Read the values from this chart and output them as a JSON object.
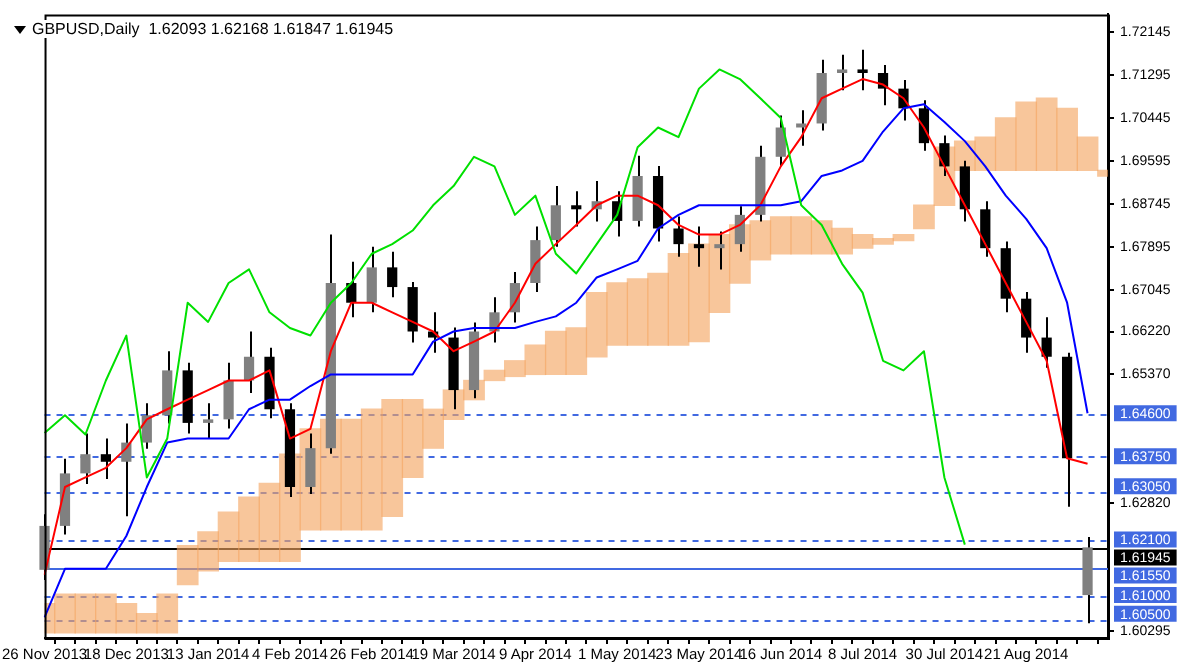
{
  "chart_data": {
    "type": "candlestick",
    "title": "GBPUSD,Daily  1.62093 1.62168 1.61847 1.61945",
    "categories": [
      "26 Nov 2013",
      null,
      null,
      null,
      "18 Dec 2013",
      null,
      null,
      null,
      "13 Jan 2014",
      null,
      null,
      null,
      "4 Feb 2014",
      null,
      null,
      null,
      "26 Feb 2014",
      null,
      null,
      null,
      "19 Mar 2014",
      null,
      null,
      null,
      "9 Apr 2014",
      null,
      null,
      null,
      "1 May 2014",
      null,
      null,
      null,
      "23 May 2014",
      null,
      null,
      null,
      "16 Jun 2014",
      null,
      null,
      null,
      "8 Jul 2014",
      null,
      null,
      null,
      "30 Jul 2014",
      null,
      null,
      null,
      "21 Aug 2014",
      null,
      null,
      null,
      null
    ],
    "ohlc": [
      [
        1.615,
        1.626,
        1.613,
        1.6237
      ],
      [
        1.6237,
        1.637,
        1.622,
        1.6341
      ],
      [
        1.6341,
        1.642,
        1.632,
        1.6379
      ],
      [
        1.6379,
        1.641,
        1.633,
        1.6364
      ],
      [
        1.6364,
        1.644,
        1.6256,
        1.6402
      ],
      [
        1.6402,
        1.648,
        1.639,
        1.6456
      ],
      [
        1.6456,
        1.6583,
        1.644,
        1.6545
      ],
      [
        1.6545,
        1.656,
        1.642,
        1.6441
      ],
      [
        1.6441,
        1.648,
        1.641,
        1.6448
      ],
      [
        1.6448,
        1.656,
        1.643,
        1.6525
      ],
      [
        1.6525,
        1.6622,
        1.65,
        1.6572
      ],
      [
        1.6572,
        1.659,
        1.645,
        1.6468
      ],
      [
        1.6468,
        1.648,
        1.6294,
        1.6314
      ],
      [
        1.6314,
        1.642,
        1.63,
        1.6391
      ],
      [
        1.6391,
        1.6814,
        1.638,
        1.6718
      ],
      [
        1.6718,
        1.676,
        1.665,
        1.6679
      ],
      [
        1.6679,
        1.679,
        1.666,
        1.6749
      ],
      [
        1.6749,
        1.678,
        1.669,
        1.671
      ],
      [
        1.671,
        1.672,
        1.66,
        1.6622
      ],
      [
        1.6622,
        1.666,
        1.658,
        1.661
      ],
      [
        1.661,
        1.663,
        1.6468,
        1.6506
      ],
      [
        1.6506,
        1.664,
        1.649,
        1.6622
      ],
      [
        1.6622,
        1.669,
        1.66,
        1.666
      ],
      [
        1.666,
        1.674,
        1.664,
        1.6718
      ],
      [
        1.6718,
        1.683,
        1.67,
        1.6803
      ],
      [
        1.6803,
        1.691,
        1.679,
        1.6872
      ],
      [
        1.6872,
        1.69,
        1.683,
        1.6864
      ],
      [
        1.6864,
        1.692,
        1.684,
        1.688
      ],
      [
        1.688,
        1.69,
        1.681,
        1.6841
      ],
      [
        1.6841,
        1.697,
        1.683,
        1.693
      ],
      [
        1.693,
        1.695,
        1.68,
        1.6826
      ],
      [
        1.6826,
        1.685,
        1.677,
        1.6795
      ],
      [
        1.6795,
        1.683,
        1.675,
        1.6787
      ],
      [
        1.6787,
        1.682,
        1.6745,
        1.6795
      ],
      [
        1.6795,
        1.687,
        1.678,
        1.6853
      ],
      [
        1.6853,
        1.699,
        1.684,
        1.6968
      ],
      [
        1.6968,
        1.705,
        1.695,
        1.7026
      ],
      [
        1.7026,
        1.706,
        1.699,
        1.7034
      ],
      [
        1.7034,
        1.716,
        1.702,
        1.7134
      ],
      [
        1.7134,
        1.717,
        1.71,
        1.7141
      ],
      [
        1.7141,
        1.718,
        1.71,
        1.7134
      ],
      [
        1.7134,
        1.715,
        1.707,
        1.7103
      ],
      [
        1.7103,
        1.712,
        1.704,
        1.7064
      ],
      [
        1.7064,
        1.708,
        1.698,
        1.6995
      ],
      [
        1.6995,
        1.701,
        1.693,
        1.6949
      ],
      [
        1.6949,
        1.696,
        1.684,
        1.6864
      ],
      [
        1.6864,
        1.688,
        1.677,
        1.6787
      ],
      [
        1.6787,
        1.68,
        1.666,
        1.6687
      ],
      [
        1.6687,
        1.67,
        1.658,
        1.661
      ],
      [
        1.661,
        1.665,
        1.655,
        1.6572
      ],
      [
        1.6572,
        1.658,
        1.6275,
        1.6371
      ],
      [
        1.61,
        1.6215,
        1.6044,
        1.61945
      ],
      null
    ],
    "colors": [
      "#808080",
      "#808080",
      "#808080",
      "#000000",
      "#808080",
      "#808080",
      "#808080",
      "#000000",
      "#808080",
      "#808080",
      "#808080",
      "#000000",
      "#000000",
      "#808080",
      "#808080",
      "#000000",
      "#808080",
      "#000000",
      "#000000",
      "#000000",
      "#000000",
      "#808080",
      "#808080",
      "#808080",
      "#808080",
      "#808080",
      "#000000",
      "#808080",
      "#000000",
      "#808080",
      "#000000",
      "#000000",
      "#000000",
      "#808080",
      "#808080",
      "#808080",
      "#808080",
      "#808080",
      "#808080",
      "#808080",
      "#000000",
      "#000000",
      "#000000",
      "#000000",
      "#000000",
      "#000000",
      "#000000",
      "#000000",
      "#000000",
      "#000000",
      "#000000",
      "#808080",
      null
    ],
    "series": [
      {
        "type": "bar",
        "color": "#f4a460",
        "base": [
          1.6025,
          1.6025,
          1.6025,
          1.6025,
          1.6025,
          1.6025,
          1.6025,
          1.6121,
          1.6148,
          1.6167,
          1.6167,
          1.6167,
          1.6167,
          1.6229,
          1.6229,
          1.6229,
          1.6229,
          1.6256,
          1.6333,
          1.6391,
          1.6448,
          1.6487,
          1.6525,
          1.6533,
          1.6537,
          1.6537,
          1.6537,
          1.6572,
          1.6595,
          1.6595,
          1.6595,
          1.6595,
          1.6602,
          1.666,
          1.6718,
          1.6764,
          1.6776,
          1.6776,
          1.6776,
          1.6776,
          1.6787,
          1.6795,
          1.6802,
          1.6826,
          1.6872,
          1.6941,
          1.6941,
          1.6941,
          1.6941,
          1.6941,
          1.6941,
          1.6941,
          1.6941
        ],
        "values": [
          0.0058,
          0.0077,
          0.0077,
          0.0077,
          0.0058,
          0.0038,
          0.0077,
          0.0077,
          0.0077,
          0.0097,
          0.0127,
          0.0154,
          0.0212,
          0.02,
          0.0219,
          0.0219,
          0.0239,
          0.0231,
          0.0154,
          0.0077,
          0.0058,
          0.0038,
          0.002,
          0.0031,
          0.0058,
          0.0085,
          0.0092,
          0.0127,
          0.0123,
          0.0131,
          0.0142,
          0.0181,
          0.0193,
          0.0154,
          0.0115,
          0.0077,
          0.0073,
          0.0073,
          0.0065,
          0.005,
          0.0027,
          0.0011,
          0.0012,
          0.0046,
          0.0115,
          0.0058,
          0.0066,
          0.0104,
          0.0135,
          0.0143,
          0.0123,
          0.0066,
          -0.0011
        ]
      },
      {
        "type": "line",
        "color": "#00e000",
        "values": [
          1.6421,
          1.6456,
          1.6418,
          1.6525,
          1.6614,
          1.6333,
          1.641,
          1.6679,
          1.6641,
          1.6718,
          1.6745,
          1.666,
          1.6629,
          1.6614,
          1.6679,
          1.6718,
          1.6776,
          1.6795,
          1.6822,
          1.6872,
          1.691,
          1.6968,
          1.6949,
          1.6853,
          1.6891,
          1.6776,
          1.6737,
          1.6795,
          1.6853,
          1.6987,
          1.7026,
          1.7007,
          1.7103,
          1.7141,
          1.7122,
          1.7084,
          1.7045,
          1.6872,
          1.6833,
          1.6756,
          1.6699,
          1.6564,
          1.6545,
          1.6583,
          1.6333,
          1.62,
          null,
          null,
          null,
          null,
          null,
          null,
          null
        ]
      },
      {
        "type": "line",
        "color": "#0000ff",
        "values": [
          1.6056,
          1.6152,
          1.6152,
          1.6152,
          1.6217,
          1.6314,
          1.6402,
          1.641,
          1.641,
          1.641,
          1.6468,
          1.6487,
          1.6487,
          1.6514,
          1.6537,
          1.6537,
          1.6537,
          1.6537,
          1.6537,
          1.6602,
          1.6622,
          1.6629,
          1.6629,
          1.6629,
          1.6641,
          1.6652,
          1.6679,
          1.6729,
          1.6745,
          1.6762,
          1.6826,
          1.6853,
          1.6872,
          1.6872,
          1.6872,
          1.6872,
          1.6872,
          1.688,
          1.693,
          1.6941,
          1.696,
          1.7018,
          1.7064,
          1.7072,
          1.7037,
          1.6999,
          1.6949,
          1.6891,
          1.6845,
          1.6787,
          1.6679,
          1.646,
          null
        ]
      },
      {
        "type": "line",
        "color": "#ff0000",
        "values": [
          1.614,
          1.6314,
          1.6333,
          1.6352,
          1.6391,
          1.6448,
          1.6468,
          1.6487,
          1.6506,
          1.6525,
          1.6525,
          1.6545,
          1.641,
          1.6429,
          1.6583,
          1.6679,
          1.6679,
          1.666,
          1.6641,
          1.6622,
          1.6583,
          1.6602,
          1.6622,
          1.6679,
          1.6756,
          1.6795,
          1.6833,
          1.6872,
          1.6891,
          1.6891,
          1.6872,
          1.6833,
          1.6814,
          1.6814,
          1.6833,
          1.6872,
          1.6949,
          1.7007,
          1.7084,
          1.7103,
          1.7122,
          1.7111,
          1.7084,
          1.7026,
          1.6949,
          1.6872,
          1.6795,
          1.6718,
          1.6641,
          1.6564,
          1.6371,
          1.636,
          null
        ]
      }
    ],
    "ylim": [
      1.6015,
      1.725
    ],
    "yticks": [
      1.60295,
      {
        "value": 1.6282,
        "label": "1.62820"
      },
      {
        "value": 1.6537,
        "label": "1.65370"
      },
      {
        "value": 1.6622,
        "label": "1.66220"
      },
      1.67045,
      1.67895,
      1.68745,
      1.69595,
      1.70445,
      1.71295,
      1.72145
    ],
    "ref_lines": [
      {
        "axis": "y",
        "value": 1.646,
        "label": "1.64600",
        "color": "#4169e1",
        "line_style": "dashed"
      },
      {
        "axis": "y",
        "value": 1.6375,
        "label": "1.63750",
        "color": "#4169e1",
        "line_style": "dashed"
      },
      {
        "axis": "y",
        "value": 1.6305,
        "label": "1.63050",
        "color": "#4169e1",
        "line_style": "dashed"
      },
      {
        "axis": "y",
        "value": 1.621,
        "label": "1.62100",
        "color": "#4169e1",
        "line_style": "dashed"
      },
      {
        "axis": "y",
        "value": 1.61945,
        "label": "1.61945",
        "color": "#000000",
        "line_style": "solid"
      },
      {
        "axis": "y",
        "value": 1.6155,
        "label": "1.61550",
        "color": "#4169e1",
        "line_style": "solid"
      },
      {
        "axis": "y",
        "value": 1.61,
        "label": "1.61000",
        "color": "#4169e1",
        "line_style": "dashed"
      },
      {
        "axis": "y",
        "value": 1.605,
        "label": "1.60500",
        "color": "#4169e1",
        "line_style": "dashed"
      }
    ]
  }
}
